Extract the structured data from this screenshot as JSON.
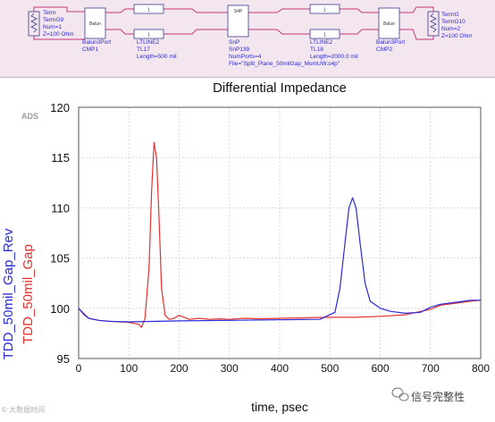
{
  "schematic": {
    "term_left": {
      "line1": "Term",
      "line2": "TermG9",
      "line3": "Num=1",
      "line4": "Z=100 Ohm"
    },
    "balun_left": {
      "line1": "Balun3Port",
      "line2": "CMP1"
    },
    "tl_left": {
      "line1": "LTLINE2",
      "line2": "TL17",
      "line3": "Length=500 mil"
    },
    "snp": {
      "line1": "SnP",
      "line2": "SnP139",
      "line3": "NumPorts=4",
      "line4": "File=\"Split_Plane_50milGap_MomUW.s4p\""
    },
    "tl_right": {
      "line1": "LTLINE2",
      "line2": "TL18",
      "line3": "Length=2000.0 mil"
    },
    "balun_right": {
      "line1": "Balun3Port",
      "line2": "CMP2"
    },
    "term_right": {
      "line1": "TermG",
      "line2": "TermG10",
      "line3": "Num=2",
      "line4": "Z=100 Ohm"
    },
    "balun_box_text": "Balun",
    "tl_box_text": "1",
    "snp_box_text": "S4P"
  },
  "watermark_left": "© 大数据时间",
  "watermark_right": "信号完整性",
  "colors": {
    "series_1": "#2a2ad8",
    "series_2": "#e3322f",
    "schematic_bg": "#f3e6ef",
    "wire": "#c4357a"
  },
  "chart_data": {
    "type": "line",
    "title": "Differential Impedance",
    "corner_label": "ADS",
    "xlabel": "time, psec",
    "xlim": [
      0,
      800
    ],
    "ylim": [
      95,
      120
    ],
    "xticks": [
      0,
      100,
      200,
      300,
      400,
      500,
      600,
      700,
      800
    ],
    "yticks": [
      95,
      100,
      105,
      110,
      115,
      120
    ],
    "grid": true,
    "legend": "left, vertical",
    "series": [
      {
        "name": "TDD_50mil_Gap_Rev",
        "color": "#2a2ad8",
        "x": [
          0,
          10,
          20,
          40,
          60,
          100,
          200,
          300,
          400,
          480,
          510,
          520,
          530,
          538,
          545,
          552,
          560,
          570,
          580,
          600,
          620,
          650,
          680,
          700,
          720,
          750,
          780,
          800
        ],
        "y": [
          100.0,
          99.4,
          99.0,
          98.8,
          98.7,
          98.65,
          98.75,
          98.8,
          98.85,
          98.9,
          99.6,
          102.0,
          106.5,
          110.0,
          111.0,
          110.0,
          106.5,
          102.5,
          100.7,
          100.0,
          99.7,
          99.5,
          99.6,
          100.1,
          100.4,
          100.6,
          100.8,
          100.8
        ]
      },
      {
        "name": "TDD_50mil_Gap",
        "color": "#e3322f",
        "x": [
          0,
          10,
          20,
          40,
          60,
          100,
          120,
          125,
          132,
          140,
          145,
          150,
          155,
          160,
          165,
          172,
          180,
          190,
          200,
          210,
          220,
          240,
          260,
          280,
          300,
          330,
          360,
          400,
          450,
          500,
          550,
          600,
          650,
          700,
          720,
          750,
          780,
          800
        ],
        "y": [
          100.0,
          99.5,
          99.0,
          98.8,
          98.7,
          98.6,
          98.4,
          98.1,
          99.0,
          104.0,
          111.5,
          116.5,
          115.0,
          109.0,
          102.0,
          99.3,
          98.9,
          99.0,
          99.3,
          99.1,
          98.9,
          99.0,
          98.9,
          98.95,
          98.9,
          99.0,
          98.95,
          99.0,
          99.05,
          99.1,
          99.1,
          99.2,
          99.35,
          99.9,
          100.3,
          100.5,
          100.7,
          100.8
        ]
      }
    ]
  }
}
